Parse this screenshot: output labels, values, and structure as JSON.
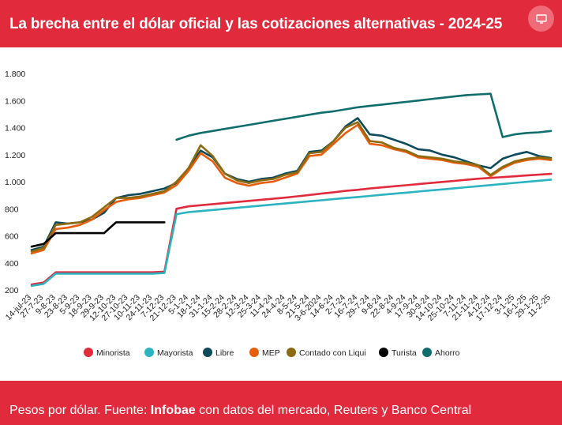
{
  "header": {
    "title": "La brecha entre el dólar oficial y las cotizaciones alternativas - 2024-25",
    "bg_color": "#e12b3c",
    "screen_icon": "monitor-icon"
  },
  "footer": {
    "source_prefix": "Pesos por dólar. Fuente: ",
    "source_bold": "Infobae",
    "source_suffix": " con datos del mercado, Reuters y Banco Central"
  },
  "chart_data": {
    "type": "line",
    "title": "",
    "xlabel": "",
    "ylabel": "",
    "ylim": [
      200,
      1800
    ],
    "y_ticks": [
      200,
      400,
      600,
      800,
      1000,
      1200,
      1400,
      1600,
      1800
    ],
    "y_tick_labels": [
      "200",
      "400",
      "600",
      "800",
      "1.000",
      "1.200",
      "1.400",
      "1.600",
      "1.800"
    ],
    "grid": false,
    "legend": "bottom",
    "categories": [
      "14-jul-23",
      "27-7-23",
      "9-8-23",
      "23-8-23",
      "5-9-23",
      "18-9-23",
      "29-9-23",
      "12-10-23",
      "27-10-23",
      "10-11-23",
      "24-11-23",
      "7-12-23",
      "21-12-23",
      "5-1-24",
      "18-1-24",
      "31-1-24",
      "15-2-24",
      "28-2-24",
      "12-3-24",
      "25-3-24",
      "11-4-24",
      "24-4-24",
      "8-5-24",
      "21-5-24",
      "3-6-2024",
      "14-6-24",
      "2-7-24",
      "16-7-24",
      "29-7-24",
      "9-8-24",
      "22-8-24",
      "4-9-24",
      "17-9-24",
      "30-9-24",
      "14-10-24",
      "25-10-24",
      "7-11-24",
      "21-11-24",
      "4-12-24",
      "17-12-24",
      "3-1-25",
      "16-1-25",
      "29-1-25",
      "11-2-25"
    ],
    "series": [
      {
        "name": "Minorista",
        "color": "#e12b3c",
        "values": [
          240,
          255,
          330,
          330,
          330,
          330,
          330,
          330,
          330,
          330,
          330,
          335,
          800,
          818,
          826,
          834,
          842,
          850,
          858,
          866,
          874,
          882,
          892,
          902,
          912,
          922,
          932,
          940,
          950,
          958,
          966,
          974,
          982,
          990,
          998,
          1006,
          1014,
          1022,
          1028,
          1034,
          1040,
          1046,
          1052,
          1058
        ]
      },
      {
        "name": "Mayorista",
        "color": "#2bb3c0",
        "values": [
          230,
          245,
          320,
          320,
          320,
          320,
          320,
          320,
          320,
          320,
          320,
          325,
          760,
          775,
          783,
          791,
          799,
          807,
          815,
          823,
          831,
          839,
          847,
          855,
          863,
          871,
          879,
          887,
          895,
          903,
          911,
          919,
          927,
          935,
          943,
          951,
          959,
          967,
          975,
          983,
          991,
          999,
          1007,
          1015
        ]
      },
      {
        "name": "Libre",
        "color": "#0d4a5a",
        "values": [
          495,
          520,
          700,
          690,
          700,
          720,
          770,
          880,
          900,
          910,
          930,
          950,
          990,
          1100,
          1230,
          1180,
          1060,
          1020,
          1000,
          1020,
          1030,
          1060,
          1080,
          1220,
          1230,
          1300,
          1410,
          1470,
          1350,
          1340,
          1310,
          1280,
          1240,
          1230,
          1200,
          1180,
          1150,
          1120,
          1100,
          1170,
          1200,
          1220,
          1190,
          1175
        ]
      },
      {
        "name": "MEP",
        "color": "#e85d0c",
        "values": [
          470,
          495,
          650,
          660,
          680,
          720,
          790,
          850,
          870,
          880,
          900,
          920,
          975,
          1080,
          1210,
          1150,
          1030,
          990,
          970,
          990,
          1000,
          1030,
          1060,
          1190,
          1200,
          1280,
          1360,
          1420,
          1280,
          1270,
          1240,
          1220,
          1180,
          1170,
          1160,
          1140,
          1130,
          1110,
          1040,
          1100,
          1140,
          1160,
          1170,
          1160
        ]
      },
      {
        "name": "Contado con Liqui",
        "color": "#8c6a10",
        "values": [
          485,
          510,
          680,
          690,
          700,
          740,
          810,
          880,
          880,
          890,
          910,
          930,
          1000,
          1100,
          1270,
          1190,
          1060,
          1010,
          990,
          1010,
          1020,
          1050,
          1070,
          1210,
          1220,
          1300,
          1400,
          1440,
          1300,
          1290,
          1250,
          1230,
          1190,
          1180,
          1170,
          1150,
          1140,
          1120,
          1050,
          1110,
          1150,
          1170,
          1180,
          1170
        ]
      },
      {
        "name": "Turista",
        "color": "#000000",
        "values": [
          520,
          540,
          620,
          620,
          620,
          620,
          620,
          700,
          700,
          700,
          700,
          700,
          null,
          null,
          null,
          null,
          null,
          null,
          null,
          null,
          null,
          null,
          null,
          null,
          null,
          null,
          null,
          null,
          null,
          null,
          null,
          null,
          null,
          null,
          null,
          null,
          null,
          null,
          null,
          null,
          null,
          null,
          null,
          null
        ]
      },
      {
        "name": "Ahorro",
        "color": "#0f6e6b",
        "values": [
          null,
          null,
          null,
          null,
          null,
          null,
          null,
          null,
          null,
          null,
          null,
          null,
          1310,
          1340,
          1360,
          1375,
          1390,
          1405,
          1420,
          1435,
          1450,
          1465,
          1480,
          1495,
          1510,
          1520,
          1535,
          1550,
          1560,
          1570,
          1580,
          1590,
          1600,
          1610,
          1620,
          1630,
          1640,
          1645,
          1650,
          1330,
          1350,
          1360,
          1365,
          1375
        ]
      }
    ]
  }
}
